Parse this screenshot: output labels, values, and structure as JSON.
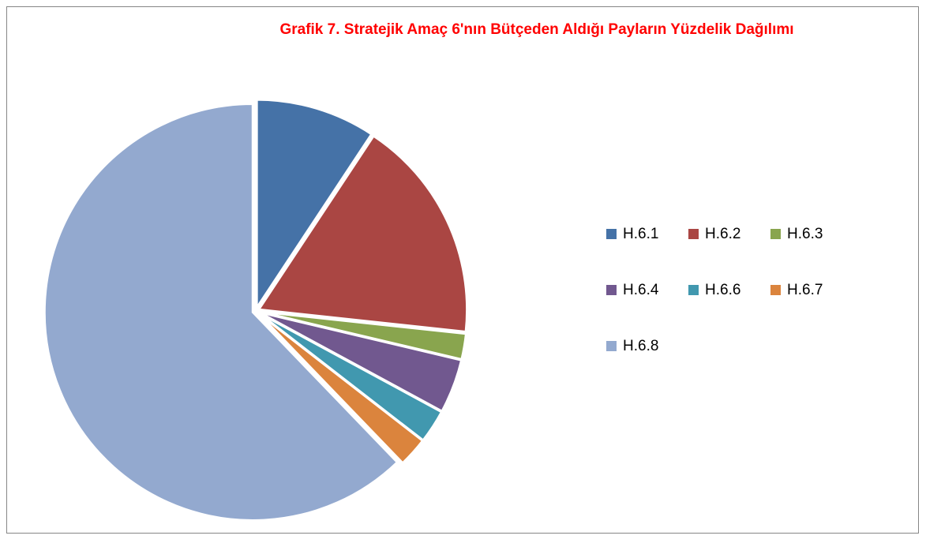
{
  "chart_data": {
    "type": "pie",
    "title": "Grafik 7. Stratejik Amaç 6'nın Bütçeden Aldığı Payların Yüzdelik Dağılımı",
    "categories": [
      "H.6.1",
      "H.6.2",
      "H.6.3",
      "H.6.4",
      "H.6.6",
      "H.6.7",
      "H.6.8"
    ],
    "values": [
      9.3,
      17.4,
      2.0,
      4.2,
      2.6,
      2.3,
      62.2
    ],
    "colors": [
      "#4572a7",
      "#aa4643",
      "#89a54e",
      "#71588f",
      "#4198af",
      "#db843d",
      "#93a9cf"
    ],
    "legend": "right"
  }
}
